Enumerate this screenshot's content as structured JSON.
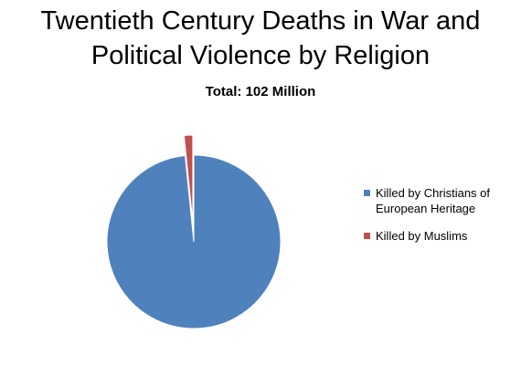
{
  "chart_data": {
    "type": "pie",
    "title_lines": [
      "Twentieth Century Deaths in War and",
      "Political Violence by Religion"
    ],
    "subtitle": "Total:  102 Million",
    "legend_position": "right",
    "slices": [
      {
        "label": "Killed by Christians of European Heritage",
        "value": 98.4,
        "color": "#4F81BD",
        "exploded": false
      },
      {
        "label": "Killed by Muslims",
        "value": 1.6,
        "color": "#C0504D",
        "exploded": true
      }
    ]
  }
}
